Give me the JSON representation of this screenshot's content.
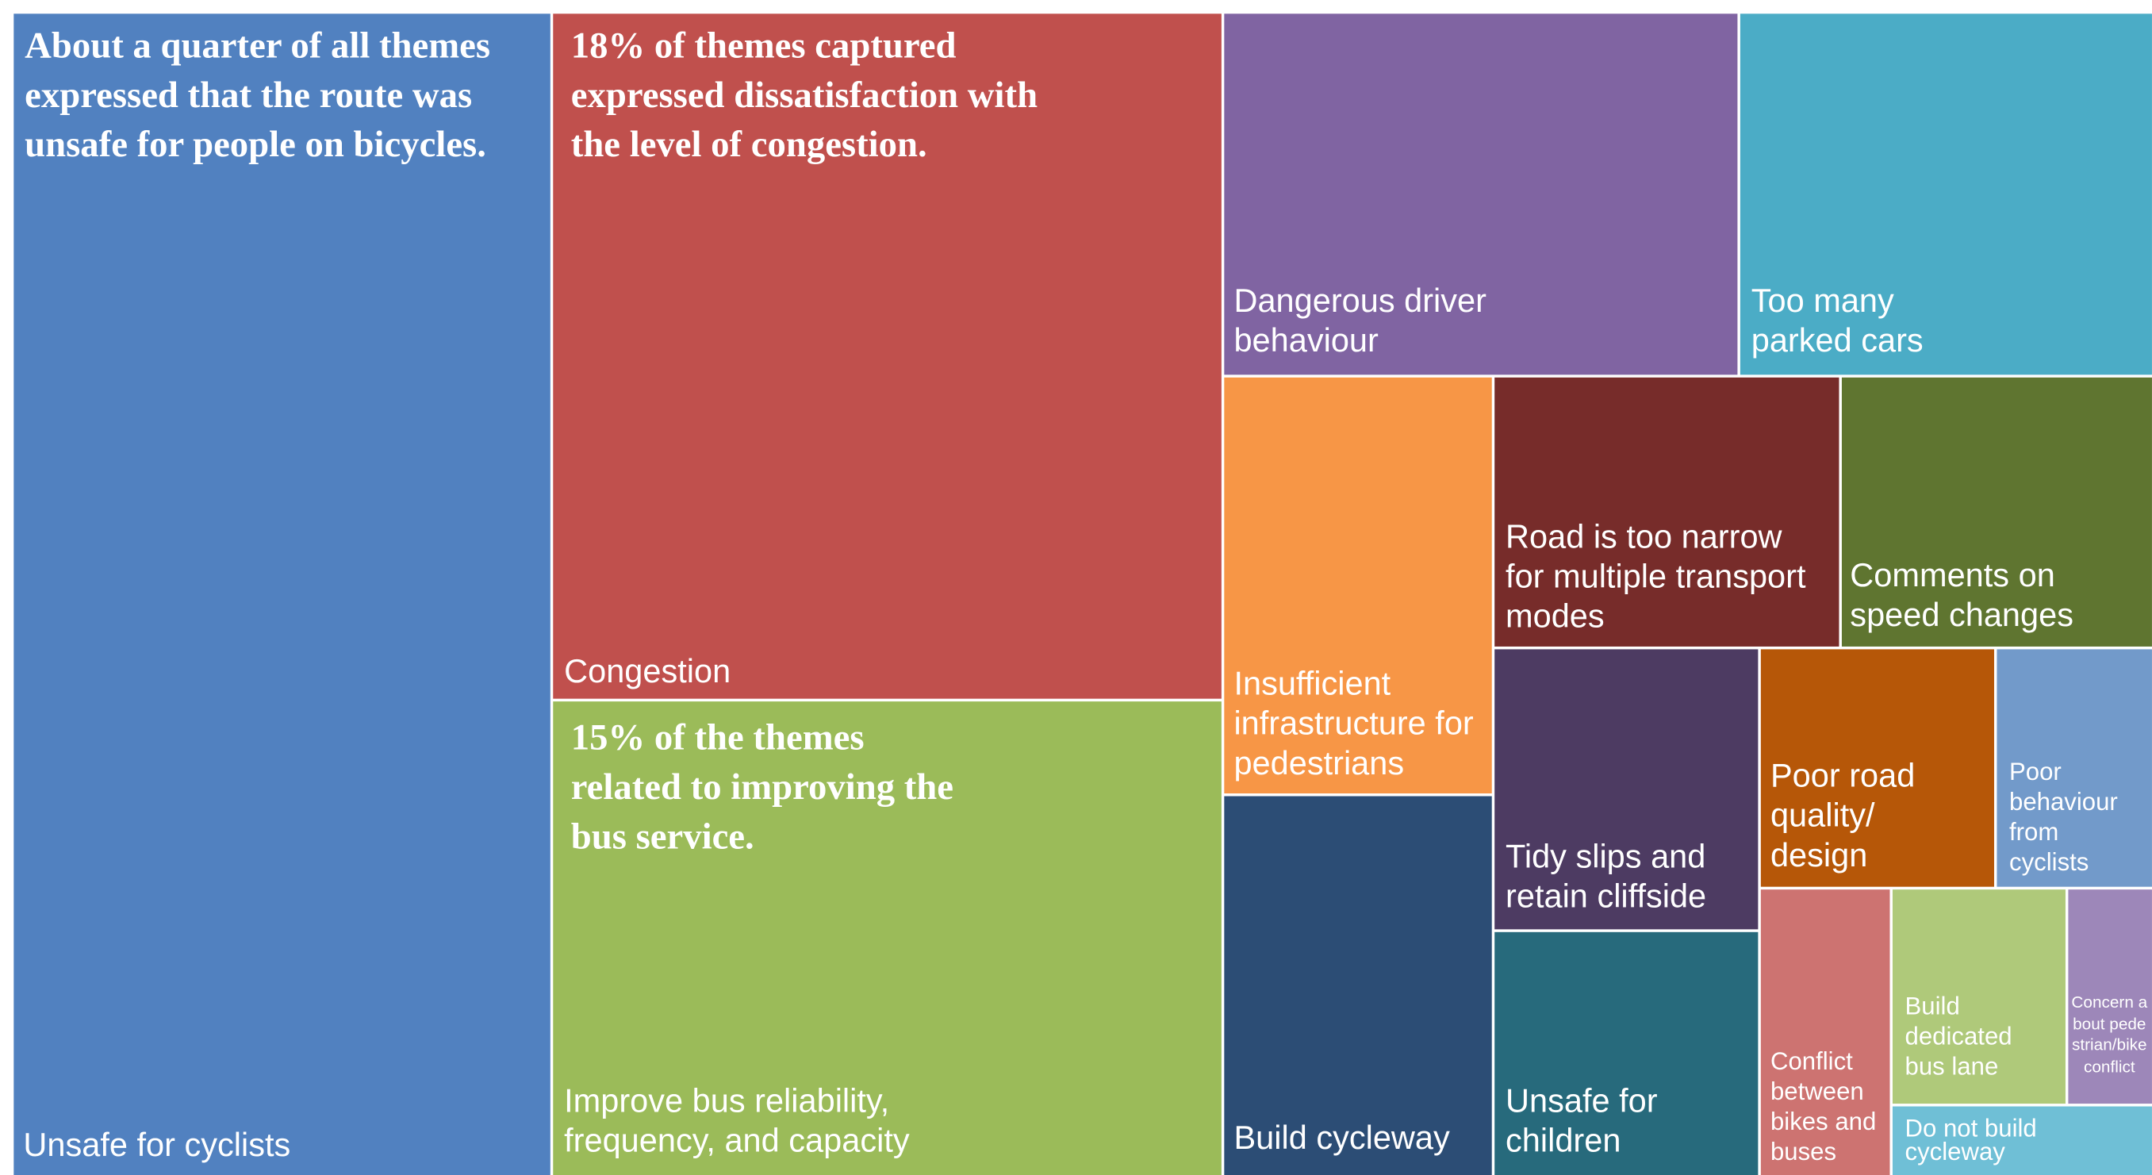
{
  "tiles": [
    {
      "label": "Unsafe for cyclists",
      "color": "#5181c0",
      "annotation": "About a quarter of all themes expressed that the route was unsafe for people on bicycles."
    },
    {
      "label": "Congestion",
      "color": "#c0504d",
      "annotation": "18% of themes captured expressed dissatisfaction with the level of congestion."
    },
    {
      "label": "Improve bus reliability, frequency, and capacity",
      "color": "#9bbb59",
      "annotation": "15% of the themes related to improving the bus service."
    },
    {
      "label": "Dangerous driver behaviour",
      "color": "#8064a2"
    },
    {
      "label": "Too many parked cars",
      "color": "#4bacc6"
    },
    {
      "label": "Insufficient infrastructure for pedestrians",
      "color": "#f79646"
    },
    {
      "label": "Build cycleway",
      "color": "#2c4d75"
    },
    {
      "label": "Road is too narrow for multiple transport modes",
      "color": "#772c2a"
    },
    {
      "label": "Comments on speed changes",
      "color": "#5f7530"
    },
    {
      "label": "Tidy slips and retain cliffside",
      "color": "#4d3b62"
    },
    {
      "label": "Unsafe for children",
      "color": "#276a7c"
    },
    {
      "label": "Poor road quality/ design",
      "color": "#b65708"
    },
    {
      "label": "Poor behaviour from cyclists",
      "color": "#729aca"
    },
    {
      "label": "Conflict between bikes and buses",
      "color": "#cd7371"
    },
    {
      "label": "Build dedicated bus lane",
      "color": "#afc97a"
    },
    {
      "label": "Concern about pedestrian/bike conflict",
      "color": "#9d87b9"
    },
    {
      "label": "Do not build cycleway",
      "color": "#6fbfd6"
    }
  ]
}
